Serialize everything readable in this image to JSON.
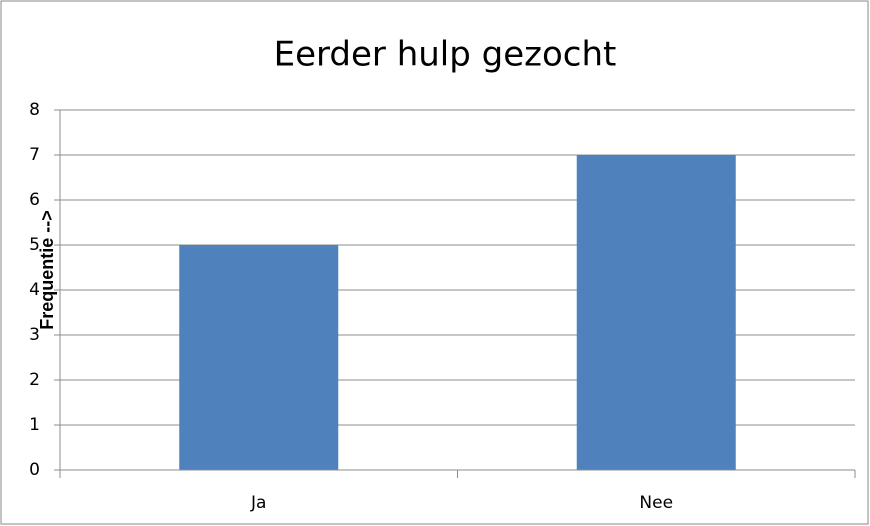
{
  "chart_data": {
    "type": "bar",
    "title": "Eerder hulp gezocht",
    "y_label": "Frequentie -->",
    "categories": [
      "Ja",
      "Nee"
    ],
    "values": [
      5,
      7
    ],
    "color": "#4f81bd",
    "ylim": [
      0,
      8
    ],
    "yticks": [
      0,
      1,
      2,
      3,
      4,
      5,
      6,
      7,
      8
    ],
    "grid": true
  }
}
